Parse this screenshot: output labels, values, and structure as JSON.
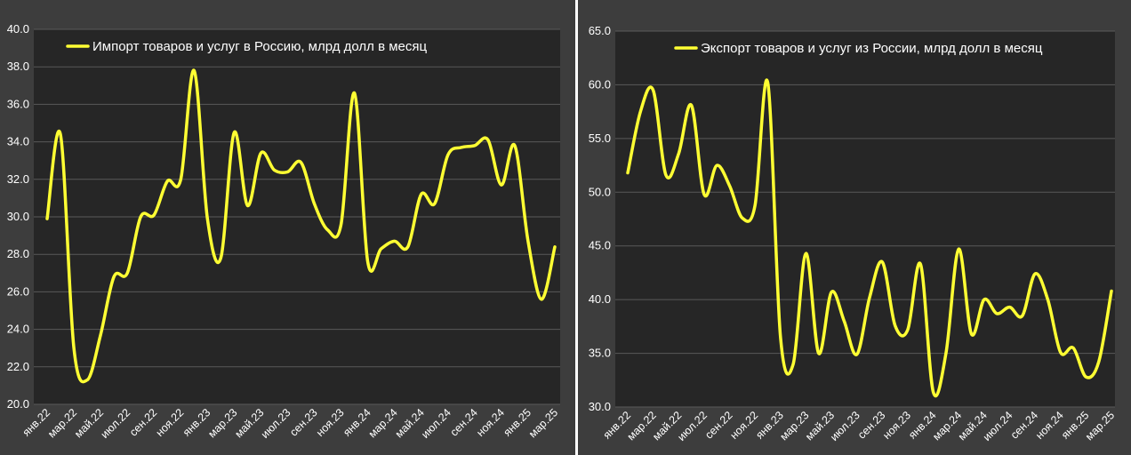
{
  "chart_data": [
    {
      "type": "line",
      "title": "",
      "xlabel": "",
      "ylabel": "",
      "ylim": [
        20,
        40
      ],
      "ytick_step": 2,
      "grid": true,
      "legend_position": "top-left",
      "line_color": "#ffff33",
      "tick_labels": [
        "янв.22",
        "мар.22",
        "май.22",
        "июл.22",
        "сен.22",
        "ноя.22",
        "янв.23",
        "мар.23",
        "май.23",
        "июл.23",
        "сен.23",
        "ноя.23",
        "янв.24",
        "мар.24",
        "май.24",
        "июл.24",
        "сен.24",
        "ноя.24",
        "янв.25",
        "мар.25"
      ],
      "x": [
        "янв.22",
        "фев.22",
        "мар.22",
        "апр.22",
        "май.22",
        "июн.22",
        "июл.22",
        "авг.22",
        "сен.22",
        "окт.22",
        "ноя.22",
        "дек.22",
        "янв.23",
        "фев.23",
        "мар.23",
        "апр.23",
        "май.23",
        "июн.23",
        "июл.23",
        "авг.23",
        "сен.23",
        "окт.23",
        "ноя.23",
        "дек.23",
        "янв.24",
        "фев.24",
        "мар.24",
        "апр.24",
        "май.24",
        "июн.24",
        "июл.24",
        "авг.24",
        "сен.24",
        "окт.24",
        "ноя.24",
        "дек.24",
        "янв.25",
        "фев.25",
        "мар.25"
      ],
      "series": [
        {
          "name": "Импорт товаров и услуг в Россию, млрд долл в месяц",
          "values": [
            29.9,
            34.4,
            23.0,
            21.3,
            23.7,
            26.8,
            27.0,
            30.0,
            30.1,
            31.9,
            32.0,
            37.8,
            29.9,
            27.8,
            34.5,
            30.6,
            33.4,
            32.5,
            32.4,
            32.9,
            30.7,
            29.3,
            29.6,
            36.6,
            27.6,
            28.3,
            28.7,
            28.4,
            31.2,
            30.7,
            33.3,
            33.7,
            33.8,
            34.1,
            31.7,
            33.8,
            28.7,
            25.6,
            28.4
          ]
        }
      ]
    },
    {
      "type": "line",
      "title": "",
      "xlabel": "",
      "ylabel": "",
      "ylim": [
        30,
        65
      ],
      "ytick_step": 5,
      "grid": true,
      "legend_position": "top-left",
      "line_color": "#ffff33",
      "tick_labels": [
        "янв.22",
        "мар.22",
        "май.22",
        "июл.22",
        "сен.22",
        "ноя.22",
        "янв.23",
        "мар.23",
        "май.23",
        "июл.23",
        "сен.23",
        "ноя.23",
        "янв.24",
        "мар.24",
        "май.24",
        "июл.24",
        "сен.24",
        "ноя.24",
        "янв.25",
        "мар.25"
      ],
      "x": [
        "янв.22",
        "фев.22",
        "мар.22",
        "апр.22",
        "май.22",
        "июн.22",
        "июл.22",
        "авг.22",
        "сен.22",
        "окт.22",
        "ноя.22",
        "дек.22",
        "янв.23",
        "фев.23",
        "мар.23",
        "апр.23",
        "май.23",
        "июн.23",
        "июл.23",
        "авг.23",
        "сен.23",
        "окт.23",
        "ноя.23",
        "дек.23",
        "янв.24",
        "фев.24",
        "мар.24",
        "апр.24",
        "май.24",
        "июн.24",
        "июл.24",
        "авг.24",
        "сен.24",
        "окт.24",
        "ноя.24",
        "дек.24",
        "янв.25",
        "фев.25",
        "мар.25"
      ],
      "series": [
        {
          "name": "Экспорт товаров и услуг из России, млрд долл в месяц",
          "values": [
            51.8,
            57.5,
            59.5,
            51.6,
            53.6,
            58.1,
            49.8,
            52.5,
            50.6,
            47.6,
            48.8,
            60.2,
            36.5,
            34.0,
            44.3,
            35.0,
            40.7,
            38.0,
            34.9,
            40.2,
            43.5,
            37.6,
            37.2,
            43.3,
            31.4,
            35.0,
            44.7,
            36.8,
            40.0,
            38.7,
            39.3,
            38.5,
            42.4,
            40.0,
            35.1,
            35.5,
            32.8,
            34.2,
            40.8
          ]
        }
      ]
    }
  ]
}
